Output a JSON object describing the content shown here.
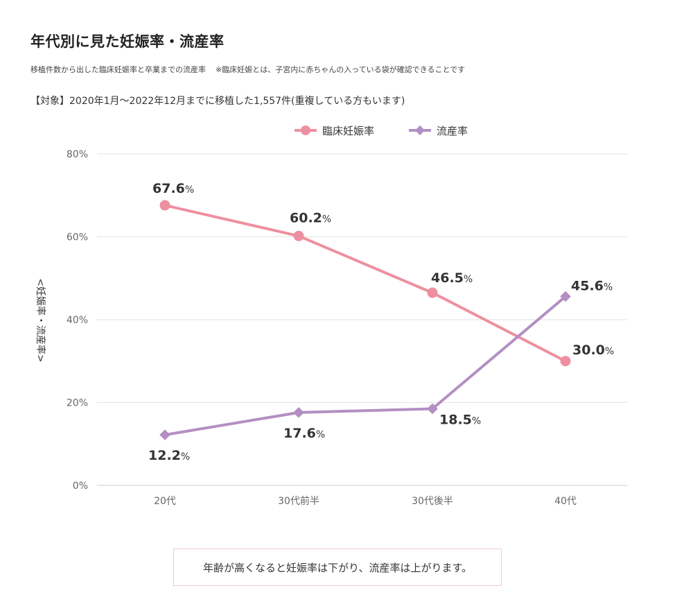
{
  "header": {
    "title": "年代別に見た妊娠率・流産率",
    "subtitle": "移植件数から出した臨床妊娠率と卒業までの流産率",
    "footnote": "※臨床妊娠とは、子宮内に赤ちゃんの入っている袋が確認できることです",
    "target": "【対象】2020年1月〜2022年12月までに移植した1,557件(重複している方もいます)"
  },
  "summary": "年齢が高くなると妊娠率は下がり、流産率は上がります。",
  "colors": {
    "pregnancy": "#ee8fa0",
    "miscarriage": "#b38fc4",
    "grid": "#e2e2e2"
  },
  "chart_data": {
    "type": "line",
    "categories": [
      "20代",
      "30代前半",
      "30代後半",
      "40代"
    ],
    "ylim": [
      0,
      80
    ],
    "yticks": [
      "0%",
      "20%",
      "40%",
      "60%",
      "80%"
    ],
    "ylabel": "<妊娠率・流産率>",
    "legend_position": "top-center",
    "grid": true,
    "unit": "%",
    "series": [
      {
        "name": "臨床妊娠率",
        "marker": "circle",
        "values": [
          67.6,
          60.2,
          46.5,
          30.0
        ],
        "labels": [
          "67.6",
          "60.2",
          "46.5",
          "30.0"
        ]
      },
      {
        "name": "流産率",
        "marker": "diamond",
        "values": [
          12.2,
          17.6,
          18.5,
          45.6
        ],
        "labels": [
          "12.2",
          "17.6",
          "18.5",
          "45.6"
        ]
      }
    ]
  }
}
